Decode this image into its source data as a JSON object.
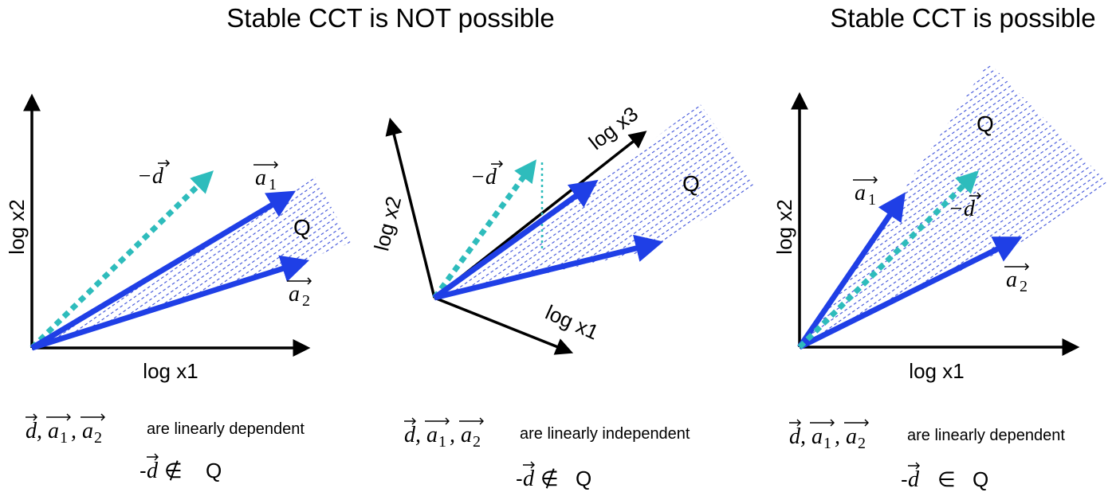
{
  "panels": [
    {
      "id": "p1",
      "title": "Stable CCT is NOT possible",
      "axes": {
        "y": "log x2",
        "x": "log x1"
      },
      "vectors": {
        "d": "−d",
        "a1": "a",
        "a1_sub": "1",
        "a2": "a",
        "a2_sub": "2"
      },
      "region": "Q",
      "caption": {
        "vec_d": "d",
        "vec_a": "a",
        "sub1": "1",
        "sub2": "2",
        "comma": ",",
        "relation": "are linearly dependent",
        "membership_prefix": "-",
        "membership_vec": "d",
        "membership_symbol": "∉",
        "membership_set": "Q"
      }
    },
    {
      "id": "p2",
      "title": "",
      "axes": {
        "y": "log x2",
        "z": "log x3",
        "x": "log x1"
      },
      "vectors": {
        "d": "−d"
      },
      "region": "Q",
      "caption": {
        "vec_d": "d",
        "vec_a": "a",
        "sub1": "1",
        "sub2": "2",
        "comma": ",",
        "relation": "are linearly independent",
        "membership_prefix": "-",
        "membership_vec": "d",
        "membership_symbol": "∉",
        "membership_set": "Q"
      }
    },
    {
      "id": "p3",
      "title": "Stable CCT is possible",
      "axes": {
        "y": "log x2",
        "x": "log x1"
      },
      "vectors": {
        "d": "−d",
        "a1": "a",
        "a1_sub": "1",
        "a2": "a",
        "a2_sub": "2"
      },
      "region": "Q",
      "caption": {
        "vec_d": "d",
        "vec_a": "a",
        "sub1": "1",
        "sub2": "2",
        "comma": ",",
        "relation": "are linearly dependent",
        "membership_prefix": "-",
        "membership_vec": "d",
        "membership_symbol": "∈",
        "membership_set": "Q"
      }
    }
  ],
  "colors": {
    "vector_a": "#1f3fe6",
    "vector_d": "#2ebcbc",
    "axis": "#000000",
    "hatch": "#3a4fd8"
  }
}
